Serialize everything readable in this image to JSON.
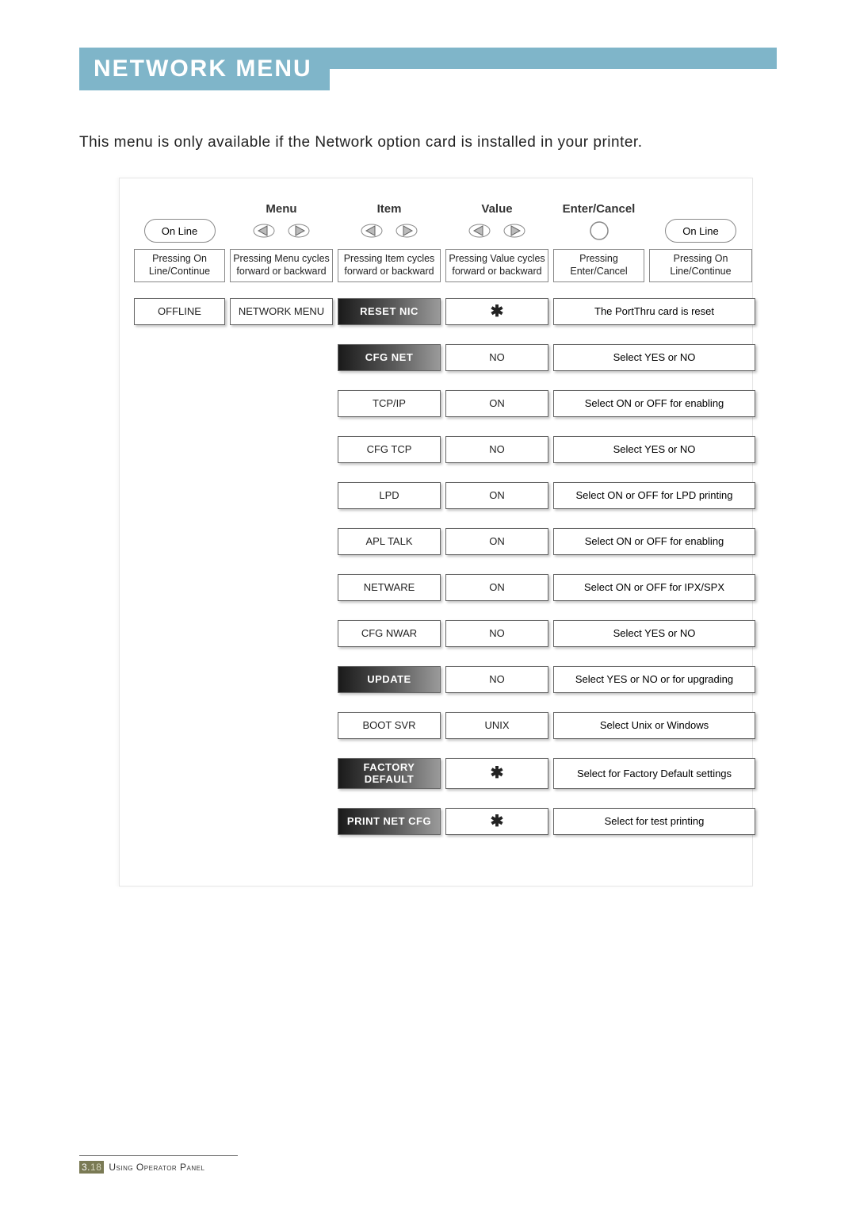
{
  "title": "NETWORK MENU",
  "intro": "This menu is only available if the Network option card is installed in your printer.",
  "colors": {
    "accent": "#7fb5c9",
    "text": "#222222",
    "border": "#666666",
    "darkGradStart": "#1a1a1a",
    "darkGradMid": "#5a5a5a",
    "darkGradEnd": "#9a9a9a"
  },
  "header": {
    "columns": [
      "Menu",
      "Item",
      "Value",
      "Enter/Cancel"
    ],
    "online_left": "On Line",
    "online_right": "On Line",
    "desc": [
      "Pressing On Line/Continue",
      "Pressing Menu cycles forward or backward",
      "Pressing Item cycles forward or backward",
      "Pressing Value cycles forward or backward",
      "Pressing Enter/Cancel",
      "Pressing On Line/Continue"
    ]
  },
  "rows": [
    {
      "offline": "OFFLINE",
      "menu": "NETWORK MENU",
      "item": "RESET NIC",
      "item_dark": true,
      "value": "✱",
      "desc": "The PortThru card is reset"
    },
    {
      "item": "CFG NET",
      "item_dark": true,
      "value": "NO",
      "desc": "Select YES or NO"
    },
    {
      "item": "TCP/IP",
      "item_dark": false,
      "value": "ON",
      "desc": "Select ON or OFF for enabling"
    },
    {
      "item": "CFG TCP",
      "item_dark": false,
      "value": "NO",
      "desc": "Select YES or NO"
    },
    {
      "item": "LPD",
      "item_dark": false,
      "value": "ON",
      "desc": "Select ON or OFF for LPD printing"
    },
    {
      "item": "APL TALK",
      "item_dark": false,
      "value": "ON",
      "desc": "Select ON or OFF for enabling"
    },
    {
      "item": "NETWARE",
      "item_dark": false,
      "value": "ON",
      "desc": "Select ON or OFF for IPX/SPX"
    },
    {
      "item": "CFG NWAR",
      "item_dark": false,
      "value": "NO",
      "desc": "Select YES or NO"
    },
    {
      "item": "UPDATE",
      "item_dark": true,
      "value": "NO",
      "desc": "Select YES or NO or for upgrading"
    },
    {
      "item": "BOOT SVR",
      "item_dark": false,
      "value": "UNIX",
      "desc": "Select Unix or Windows"
    },
    {
      "item": "FACTORY DEFAULT",
      "item_dark": true,
      "value": "✱",
      "desc": "Select for Factory Default settings"
    },
    {
      "item": "PRINT NET CFG",
      "item_dark": true,
      "value": "✱",
      "desc": "Select for test printing"
    }
  ],
  "footer": {
    "page_major": "3.",
    "page_minor": "18",
    "section": "Using Operator Panel"
  }
}
